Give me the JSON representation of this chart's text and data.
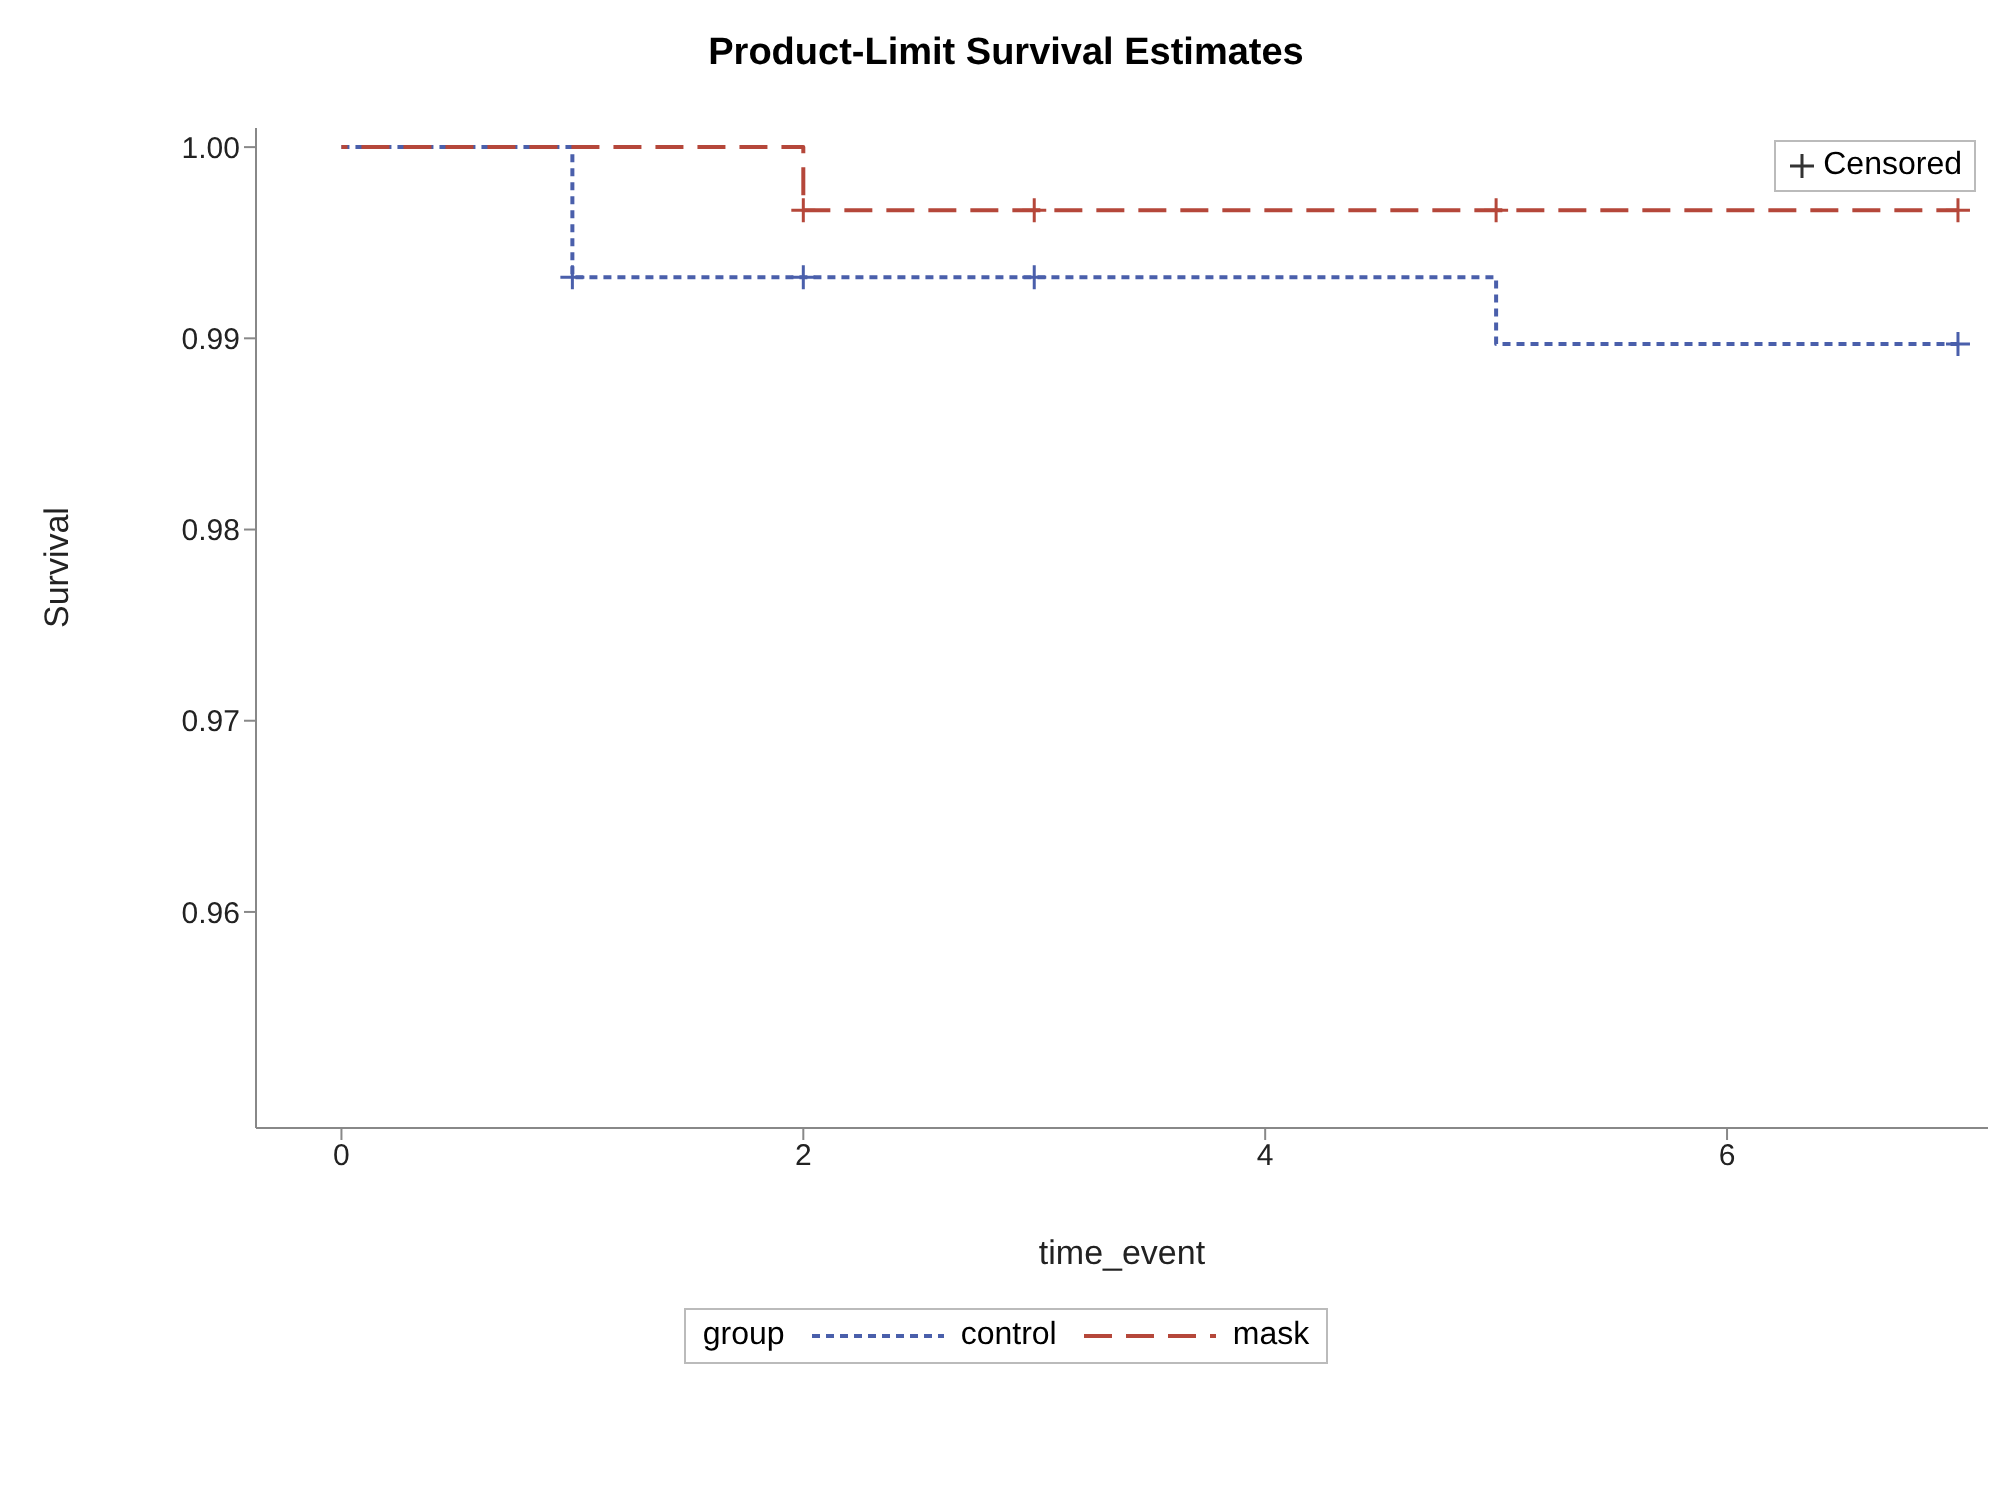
{
  "chart_data": {
    "type": "step",
    "title": "Product-Limit Survival Estimates",
    "xlabel": "time_event",
    "ylabel": "Survival",
    "legend_title": "group",
    "legend": "bottom",
    "xlim": [
      -0.37,
      7.13
    ],
    "xticks": [
      0,
      2,
      4,
      6
    ],
    "ylim": [
      0.9487,
      1.001
    ],
    "yticks": [
      0.96,
      0.97,
      0.98,
      0.99,
      {
        "value": 1,
        "label": "1.00"
      }
    ],
    "grid": false,
    "series": [
      {
        "name": "control",
        "color": "#4a5fab",
        "line_style": "dotted",
        "x": [
          0,
          1,
          5,
          7
        ],
        "values": [
          1,
          0.9932,
          0.9897,
          0.9897
        ]
      },
      {
        "name": "mask",
        "color": "#b5473a",
        "line_style": "dashed",
        "x": [
          0,
          2,
          7
        ],
        "values": [
          1,
          0.9967,
          0.9967
        ]
      },
      {
        "name": "Censored",
        "type": "scatter",
        "marker": "cross",
        "color": "#333333",
        "x": [
          1,
          2,
          3,
          7,
          2,
          3,
          5,
          7
        ],
        "values": [
          0.9932,
          0.9932,
          0.9932,
          0.9897,
          0.9967,
          0.9967,
          0.9967,
          0.9967
        ],
        "colors": [
          "#4a5fab",
          "#4a5fab",
          "#4a5fab",
          "#4a5fab",
          "#b5473a",
          "#b5473a",
          "#b5473a",
          "#b5473a"
        ]
      }
    ]
  }
}
